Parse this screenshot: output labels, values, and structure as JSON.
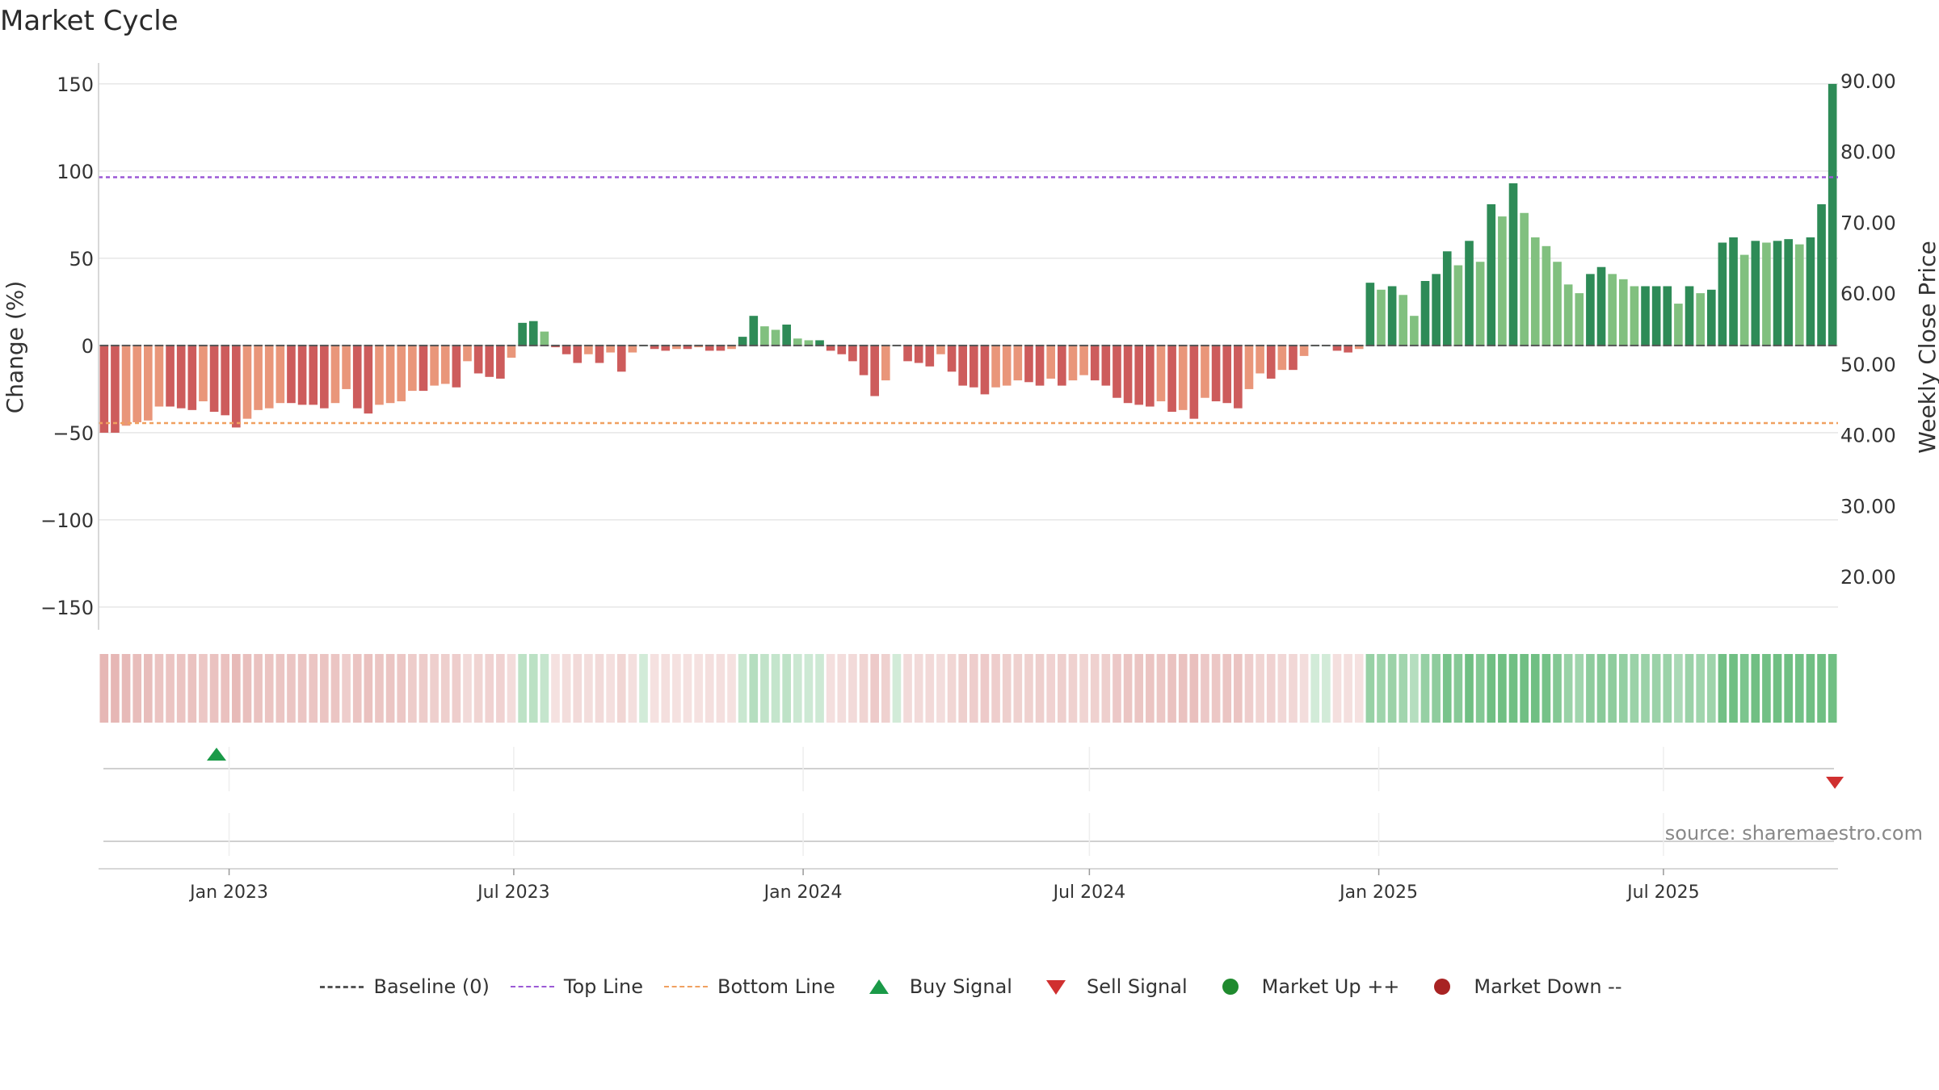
{
  "title": "Market Cycle",
  "source": "source: sharemaestro.com",
  "colors": {
    "strong_up": "#2e8b57",
    "weak_up": "#81c07f",
    "strong_down": "#cd5c5c",
    "weak_down": "#e9967a",
    "top_line": "#9b59d6",
    "bottom_line": "#f0a060",
    "buy": "#1a9a48",
    "sell": "#d03030"
  },
  "legend": [
    {
      "label": "Baseline (0)",
      "icon": "dash-line"
    },
    {
      "label": "Top Line",
      "icon": "purple-dotted-line"
    },
    {
      "label": "Bottom Line",
      "icon": "orange-dotted-line"
    },
    {
      "label": "Buy Signal",
      "icon": "green-up-triangle"
    },
    {
      "label": "Sell Signal",
      "icon": "red-down-triangle"
    },
    {
      "label": "Market Up ++",
      "icon": "green-dot"
    },
    {
      "label": "Market Down --",
      "icon": "red-dot"
    }
  ],
  "chart_data": {
    "type": "bar",
    "title": "Market Cycle",
    "ylabel": "Change (%)",
    "y2label": "Weekly Close Price",
    "ylim": [
      -163,
      162
    ],
    "y2lim": [
      12.5,
      92.5
    ],
    "yticks": [
      150,
      100,
      50,
      0,
      -50,
      -100,
      -150
    ],
    "ytick_labels": [
      "150",
      "100",
      "50",
      "0",
      "−50",
      "−100",
      "−150"
    ],
    "y2ticks": [
      90,
      80,
      70,
      60,
      50,
      40,
      30,
      20
    ],
    "y2tick_labels": [
      "90.00",
      "80.00",
      "70.00",
      "60.00",
      "50.00",
      "40.00",
      "30.00",
      "20.00"
    ],
    "xtick_labels": [
      "Jan 2023",
      "Jul 2023",
      "Jan 2024",
      "Jul 2024",
      "Jan 2025",
      "Jul 2025"
    ],
    "xtick_dates": [
      "2023-01-01",
      "2023-07-01",
      "2024-01-01",
      "2024-07-01",
      "2025-01-01",
      "2025-07-01"
    ],
    "x_start": "2022-10-10",
    "x_end": "2025-10-20",
    "top_line": 96.5,
    "bottom_line": -44.5,
    "baseline": 0,
    "grid": true,
    "legend_position": "bottom-center",
    "series": [
      {
        "values": [
          -50,
          -50,
          -46,
          -44,
          -43,
          -35,
          -35,
          -36,
          -37,
          -32,
          -38,
          -40,
          -47,
          -42,
          -37,
          -36,
          -33,
          -33,
          -34,
          -34,
          -36,
          -33,
          -25,
          -36,
          -39,
          -34,
          -33,
          -32,
          -26,
          -26,
          -23,
          -22,
          -24,
          -9,
          -16,
          -18,
          -19,
          -7,
          13,
          14,
          8,
          -1,
          -5,
          -10,
          -5,
          -10,
          -4,
          -15,
          -4,
          0,
          -2,
          -3,
          -2,
          -2,
          -1,
          -3,
          -3,
          -2,
          5,
          17,
          11,
          9,
          12,
          4,
          3,
          3,
          -3,
          -5,
          -9,
          -17,
          -29,
          -20,
          0,
          -9,
          -10,
          -12,
          -5,
          -15,
          -23,
          -24,
          -28,
          -24,
          -23,
          -20,
          -21,
          -23,
          -19,
          -23,
          -20,
          -17,
          -20,
          -23,
          -30,
          -33,
          -34,
          -35,
          -32,
          -38,
          -37,
          -42,
          -30,
          -32,
          -33,
          -36,
          -25,
          -16,
          -19,
          -14,
          -14,
          -6,
          0,
          0,
          -3,
          -4,
          -2,
          36,
          32,
          34,
          29,
          17,
          37,
          41,
          54,
          46,
          60,
          48,
          81,
          74,
          93,
          76,
          62,
          57,
          48,
          35,
          30,
          41,
          45,
          41,
          38,
          34,
          34,
          34,
          34,
          24,
          34,
          30,
          32,
          59,
          62,
          52,
          60,
          59,
          60,
          61,
          58,
          62,
          81,
          150
        ]
      }
    ],
    "buy_signals": [
      "2022-12-24"
    ],
    "sell_signals": [
      "2025-10-18"
    ]
  }
}
